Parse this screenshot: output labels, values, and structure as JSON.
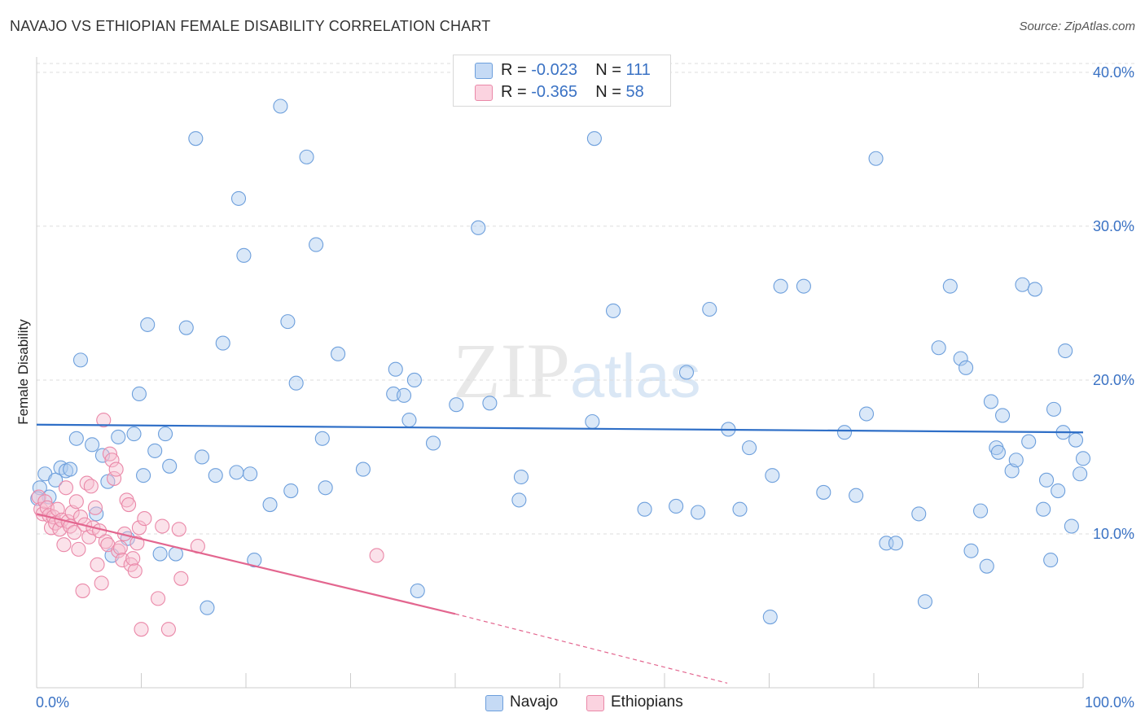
{
  "header": {
    "title": "NAVAJO VS ETHIOPIAN FEMALE DISABILITY CORRELATION CHART",
    "source": "Source: ZipAtlas.com"
  },
  "watermark": {
    "zip": "ZIP",
    "atlas": "atlas"
  },
  "legend": {
    "navajo": {
      "r_label": "R = ",
      "r_value": "-0.023",
      "n_label": "N = ",
      "n_value": "111"
    },
    "ethiopians": {
      "r_label": "R = ",
      "r_value": "-0.365",
      "n_label": "N = ",
      "n_value": "58"
    }
  },
  "bottom_legend": {
    "navajo": "Navajo",
    "ethiopians": "Ethiopians"
  },
  "colors": {
    "navajo_fill": "#aecbf0",
    "navajo_stroke": "#6d9fdc",
    "navajo_line": "#2f6fc7",
    "ethiopian_fill": "#f7bfd1",
    "ethiopian_stroke": "#ea88a8",
    "ethiopian_line": "#e3668f",
    "tick_text": "#3a72c4"
  },
  "chart_data": {
    "type": "scatter",
    "title": "NAVAJO VS ETHIOPIAN FEMALE DISABILITY CORRELATION CHART",
    "xlabel": "",
    "ylabel": "Female Disability",
    "xlim": [
      0,
      100
    ],
    "ylim": [
      0,
      41
    ],
    "x_tick_labels": [
      "0.0%",
      "100.0%"
    ],
    "y_ticks": [
      10,
      20,
      30,
      40
    ],
    "y_tick_labels": [
      "10.0%",
      "20.0%",
      "30.0%",
      "40.0%"
    ],
    "grid": true,
    "legend_position": "top-center",
    "series": [
      {
        "name": "Navajo",
        "points": [
          [
            0.3,
            13.0
          ],
          [
            0.8,
            13.9
          ],
          [
            1.2,
            12.4
          ],
          [
            1.8,
            13.5
          ],
          [
            2.3,
            14.3
          ],
          [
            2.8,
            14.1
          ],
          [
            3.2,
            14.2
          ],
          [
            3.8,
            16.2
          ],
          [
            4.2,
            21.3
          ],
          [
            5.3,
            15.8
          ],
          [
            5.7,
            11.3
          ],
          [
            6.3,
            15.1
          ],
          [
            6.8,
            13.4
          ],
          [
            7.2,
            8.6
          ],
          [
            7.8,
            16.3
          ],
          [
            8.7,
            9.7
          ],
          [
            9.3,
            16.5
          ],
          [
            9.8,
            19.1
          ],
          [
            10.2,
            13.8
          ],
          [
            10.6,
            23.6
          ],
          [
            11.3,
            15.4
          ],
          [
            11.8,
            8.7
          ],
          [
            12.3,
            16.5
          ],
          [
            12.7,
            14.4
          ],
          [
            13.3,
            8.7
          ],
          [
            14.3,
            23.4
          ],
          [
            15.2,
            35.7
          ],
          [
            15.8,
            15.0
          ],
          [
            16.3,
            5.2
          ],
          [
            17.1,
            13.8
          ],
          [
            17.8,
            22.4
          ],
          [
            19.1,
            14.0
          ],
          [
            19.3,
            31.8
          ],
          [
            19.8,
            28.1
          ],
          [
            20.4,
            13.9
          ],
          [
            20.8,
            8.3
          ],
          [
            22.3,
            11.9
          ],
          [
            23.3,
            37.8
          ],
          [
            24.0,
            23.8
          ],
          [
            24.3,
            12.8
          ],
          [
            24.8,
            19.8
          ],
          [
            25.8,
            34.5
          ],
          [
            26.7,
            28.8
          ],
          [
            27.3,
            16.2
          ],
          [
            27.6,
            13.0
          ],
          [
            28.8,
            21.7
          ],
          [
            31.2,
            14.2
          ],
          [
            34.1,
            19.1
          ],
          [
            34.3,
            20.7
          ],
          [
            35.1,
            19.0
          ],
          [
            35.6,
            17.4
          ],
          [
            36.1,
            20.0
          ],
          [
            36.4,
            6.3
          ],
          [
            37.9,
            15.9
          ],
          [
            40.1,
            18.4
          ],
          [
            42.2,
            29.9
          ],
          [
            43.3,
            18.5
          ],
          [
            46.1,
            12.2
          ],
          [
            46.3,
            13.7
          ],
          [
            53.1,
            17.3
          ],
          [
            53.3,
            35.7
          ],
          [
            55.1,
            24.5
          ],
          [
            58.1,
            11.6
          ],
          [
            61.1,
            11.8
          ],
          [
            62.1,
            20.5
          ],
          [
            63.2,
            11.4
          ],
          [
            64.3,
            24.6
          ],
          [
            66.1,
            16.8
          ],
          [
            67.2,
            11.6
          ],
          [
            68.1,
            15.6
          ],
          [
            70.1,
            4.6
          ],
          [
            70.3,
            13.8
          ],
          [
            71.1,
            26.1
          ],
          [
            73.3,
            26.1
          ],
          [
            75.2,
            12.7
          ],
          [
            77.2,
            16.6
          ],
          [
            78.3,
            12.5
          ],
          [
            79.3,
            17.8
          ],
          [
            80.2,
            34.4
          ],
          [
            81.2,
            9.4
          ],
          [
            82.1,
            9.4
          ],
          [
            84.3,
            11.3
          ],
          [
            84.9,
            5.6
          ],
          [
            86.2,
            22.1
          ],
          [
            87.3,
            26.1
          ],
          [
            88.3,
            21.4
          ],
          [
            88.8,
            20.8
          ],
          [
            89.3,
            8.9
          ],
          [
            90.2,
            11.5
          ],
          [
            90.8,
            7.9
          ],
          [
            91.2,
            18.6
          ],
          [
            91.7,
            15.6
          ],
          [
            91.9,
            15.3
          ],
          [
            92.3,
            17.7
          ],
          [
            93.2,
            14.1
          ],
          [
            93.6,
            14.8
          ],
          [
            94.2,
            26.2
          ],
          [
            94.8,
            16.0
          ],
          [
            95.4,
            25.9
          ],
          [
            96.2,
            11.6
          ],
          [
            96.5,
            13.5
          ],
          [
            96.9,
            8.3
          ],
          [
            97.2,
            18.1
          ],
          [
            97.6,
            12.8
          ],
          [
            98.1,
            16.6
          ],
          [
            98.3,
            21.9
          ],
          [
            98.9,
            10.5
          ],
          [
            99.3,
            16.1
          ],
          [
            99.7,
            13.9
          ],
          [
            100.0,
            14.9
          ],
          [
            0.1,
            12.3
          ]
        ]
      },
      {
        "name": "Ethiopians",
        "points": [
          [
            0.2,
            12.4
          ],
          [
            0.4,
            11.6
          ],
          [
            0.6,
            11.3
          ],
          [
            0.8,
            12.1
          ],
          [
            1.0,
            11.7
          ],
          [
            1.2,
            11.2
          ],
          [
            1.4,
            10.4
          ],
          [
            1.6,
            11.1
          ],
          [
            1.8,
            10.7
          ],
          [
            2.0,
            11.6
          ],
          [
            2.2,
            10.3
          ],
          [
            2.4,
            10.9
          ],
          [
            2.6,
            9.3
          ],
          [
            2.8,
            13.0
          ],
          [
            3.0,
            10.8
          ],
          [
            3.2,
            10.5
          ],
          [
            3.4,
            11.4
          ],
          [
            3.6,
            10.1
          ],
          [
            3.8,
            12.1
          ],
          [
            4.0,
            9.0
          ],
          [
            4.2,
            11.1
          ],
          [
            4.4,
            6.3
          ],
          [
            4.6,
            10.6
          ],
          [
            4.8,
            13.3
          ],
          [
            5.0,
            9.8
          ],
          [
            5.2,
            13.1
          ],
          [
            5.4,
            10.4
          ],
          [
            5.6,
            11.7
          ],
          [
            5.8,
            8.0
          ],
          [
            6.0,
            10.2
          ],
          [
            6.2,
            6.8
          ],
          [
            6.4,
            17.4
          ],
          [
            6.6,
            9.5
          ],
          [
            6.8,
            9.3
          ],
          [
            7.0,
            15.2
          ],
          [
            7.2,
            14.8
          ],
          [
            7.4,
            13.6
          ],
          [
            7.6,
            14.2
          ],
          [
            7.8,
            8.9
          ],
          [
            8.0,
            9.1
          ],
          [
            8.2,
            8.3
          ],
          [
            8.4,
            10.0
          ],
          [
            8.6,
            12.2
          ],
          [
            8.8,
            11.9
          ],
          [
            9.0,
            8.0
          ],
          [
            9.2,
            8.4
          ],
          [
            9.4,
            7.6
          ],
          [
            9.6,
            9.4
          ],
          [
            9.8,
            10.4
          ],
          [
            10.0,
            3.8
          ],
          [
            10.3,
            11.0
          ],
          [
            11.6,
            5.8
          ],
          [
            12.0,
            10.5
          ],
          [
            12.6,
            3.8
          ],
          [
            13.6,
            10.3
          ],
          [
            13.8,
            7.1
          ],
          [
            15.4,
            9.2
          ],
          [
            32.5,
            8.6
          ]
        ]
      }
    ],
    "trendlines": [
      {
        "series": "Navajo",
        "x": [
          0,
          100
        ],
        "y": [
          17.1,
          16.6
        ]
      },
      {
        "series": "Ethiopians",
        "x": [
          0,
          40
        ],
        "y": [
          11.3,
          4.8
        ],
        "dashed_extension_x": [
          40,
          66
        ],
        "dashed_extension_y": [
          4.8,
          0.3
        ]
      }
    ]
  }
}
